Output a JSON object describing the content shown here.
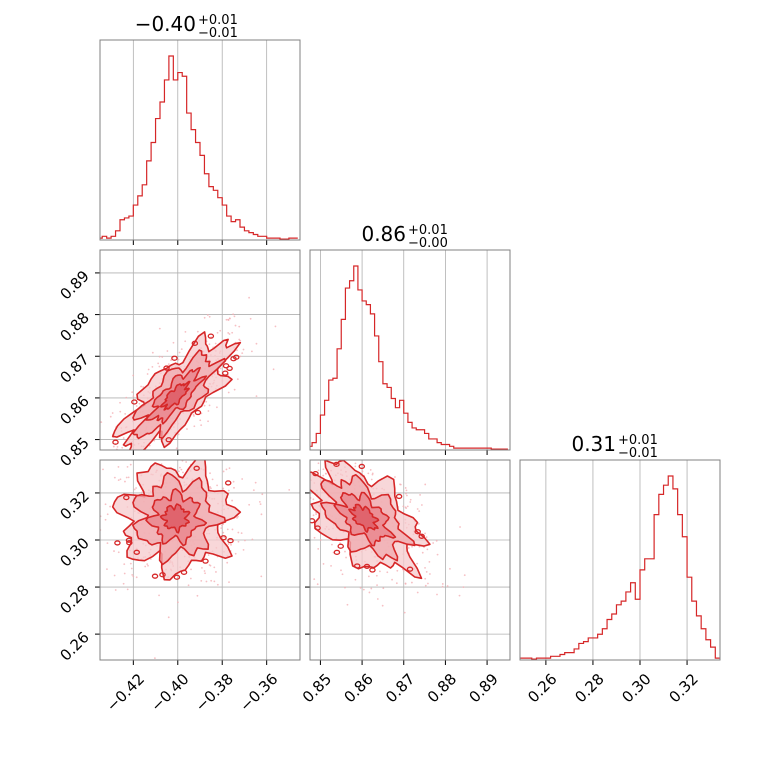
{
  "chart_data": [
    {
      "panel": "hist-param-1",
      "type": "histogram",
      "title": {
        "median": "−0.40",
        "plus": "+0.01",
        "minus": "−0.01"
      },
      "xlim": [
        -0.435,
        -0.345
      ],
      "gridlines_x": [
        -0.42,
        -0.4,
        -0.38,
        -0.36
      ],
      "bins": [
        [
          -0.435,
          0.01
        ],
        [
          -0.433,
          0.02
        ],
        [
          -0.431,
          0.01
        ],
        [
          -0.429,
          0.02
        ],
        [
          -0.427,
          0.05
        ],
        [
          -0.425,
          0.11
        ],
        [
          -0.423,
          0.12
        ],
        [
          -0.421,
          0.13
        ],
        [
          -0.419,
          0.19
        ],
        [
          -0.417,
          0.24
        ],
        [
          -0.415,
          0.3
        ],
        [
          -0.413,
          0.43
        ],
        [
          -0.411,
          0.53
        ],
        [
          -0.409,
          0.66
        ],
        [
          -0.407,
          0.75
        ],
        [
          -0.405,
          0.87
        ],
        [
          -0.403,
          1.0
        ],
        [
          -0.401,
          0.87
        ],
        [
          -0.399,
          0.91
        ],
        [
          -0.397,
          0.89
        ],
        [
          -0.395,
          0.69
        ],
        [
          -0.393,
          0.6
        ],
        [
          -0.391,
          0.53
        ],
        [
          -0.389,
          0.46
        ],
        [
          -0.387,
          0.36
        ],
        [
          -0.385,
          0.29
        ],
        [
          -0.383,
          0.27
        ],
        [
          -0.381,
          0.23
        ],
        [
          -0.379,
          0.19
        ],
        [
          -0.377,
          0.13
        ],
        [
          -0.375,
          0.1
        ],
        [
          -0.373,
          0.11
        ],
        [
          -0.371,
          0.07
        ],
        [
          -0.369,
          0.05
        ],
        [
          -0.367,
          0.04
        ],
        [
          -0.365,
          0.03
        ],
        [
          -0.363,
          0.02
        ],
        [
          -0.361,
          0.02
        ],
        [
          -0.359,
          0.01
        ],
        [
          -0.357,
          0.01
        ],
        [
          -0.355,
          0.01
        ],
        [
          -0.353,
          0.005
        ],
        [
          -0.351,
          0.005
        ],
        [
          -0.349,
          0.01
        ],
        [
          -0.347,
          0.01
        ]
      ]
    },
    {
      "panel": "hist-param-2",
      "type": "histogram",
      "title": {
        "median": "0.86",
        "plus": "+0.01",
        "minus": "−0.00"
      },
      "xlim": [
        0.8475,
        0.8955
      ],
      "gridlines_x": [
        0.85,
        0.86,
        0.87,
        0.88,
        0.89
      ],
      "bins": [
        [
          0.8475,
          0.02
        ],
        [
          0.8485,
          0.04
        ],
        [
          0.8495,
          0.09
        ],
        [
          0.8505,
          0.19
        ],
        [
          0.8515,
          0.27
        ],
        [
          0.8525,
          0.38
        ],
        [
          0.8535,
          0.39
        ],
        [
          0.8545,
          0.55
        ],
        [
          0.8555,
          0.71
        ],
        [
          0.8565,
          0.88
        ],
        [
          0.8575,
          0.92
        ],
        [
          0.8585,
          1.0
        ],
        [
          0.8595,
          0.87
        ],
        [
          0.8605,
          0.81
        ],
        [
          0.8615,
          0.79
        ],
        [
          0.8625,
          0.74
        ],
        [
          0.8635,
          0.62
        ],
        [
          0.8645,
          0.48
        ],
        [
          0.8655,
          0.36
        ],
        [
          0.8665,
          0.34
        ],
        [
          0.8675,
          0.28
        ],
        [
          0.8685,
          0.23
        ],
        [
          0.8695,
          0.27
        ],
        [
          0.8705,
          0.2
        ],
        [
          0.8715,
          0.15
        ],
        [
          0.8725,
          0.12
        ],
        [
          0.8735,
          0.11
        ],
        [
          0.8745,
          0.11
        ],
        [
          0.8755,
          0.09
        ],
        [
          0.8765,
          0.06
        ],
        [
          0.8775,
          0.06
        ],
        [
          0.8785,
          0.04
        ],
        [
          0.8795,
          0.03
        ],
        [
          0.8805,
          0.03
        ],
        [
          0.8815,
          0.02
        ],
        [
          0.8825,
          0.01
        ],
        [
          0.8835,
          0.01
        ],
        [
          0.8845,
          0.01
        ],
        [
          0.8855,
          0.01
        ],
        [
          0.8865,
          0.01
        ],
        [
          0.8875,
          0.01
        ],
        [
          0.8885,
          0.01
        ],
        [
          0.8895,
          0.01
        ],
        [
          0.8905,
          0.01
        ],
        [
          0.8915,
          0.005
        ],
        [
          0.8925,
          0.005
        ],
        [
          0.8935,
          0.005
        ],
        [
          0.8945,
          0.005
        ]
      ]
    },
    {
      "panel": "hist-param-3",
      "type": "histogram",
      "title": {
        "median": "0.31",
        "plus": "+0.01",
        "minus": "−0.01"
      },
      "xlim": [
        0.249,
        0.334
      ],
      "gridlines_x": [
        0.26,
        0.28,
        0.3,
        0.32
      ],
      "bins": [
        [
          0.249,
          0.01
        ],
        [
          0.251,
          0.01
        ],
        [
          0.253,
          0.01
        ],
        [
          0.255,
          0.005
        ],
        [
          0.257,
          0.01
        ],
        [
          0.259,
          0.01
        ],
        [
          0.261,
          0.01
        ],
        [
          0.263,
          0.02
        ],
        [
          0.265,
          0.02
        ],
        [
          0.267,
          0.03
        ],
        [
          0.269,
          0.04
        ],
        [
          0.271,
          0.04
        ],
        [
          0.273,
          0.06
        ],
        [
          0.275,
          0.09
        ],
        [
          0.277,
          0.1
        ],
        [
          0.279,
          0.12
        ],
        [
          0.281,
          0.12
        ],
        [
          0.283,
          0.14
        ],
        [
          0.285,
          0.17
        ],
        [
          0.287,
          0.22
        ],
        [
          0.289,
          0.25
        ],
        [
          0.291,
          0.3
        ],
        [
          0.293,
          0.32
        ],
        [
          0.295,
          0.37
        ],
        [
          0.297,
          0.42
        ],
        [
          0.299,
          0.33
        ],
        [
          0.301,
          0.49
        ],
        [
          0.303,
          0.55
        ],
        [
          0.305,
          0.55
        ],
        [
          0.307,
          0.79
        ],
        [
          0.309,
          0.9
        ],
        [
          0.311,
          0.95
        ],
        [
          0.313,
          1.0
        ],
        [
          0.315,
          0.93
        ],
        [
          0.317,
          0.79
        ],
        [
          0.319,
          0.67
        ],
        [
          0.321,
          0.45
        ],
        [
          0.323,
          0.32
        ],
        [
          0.325,
          0.24
        ],
        [
          0.327,
          0.17
        ],
        [
          0.329,
          0.11
        ],
        [
          0.331,
          0.07
        ],
        [
          0.333,
          0.01
        ]
      ]
    },
    {
      "panel": "contour-p1-p2",
      "type": "contour",
      "xlim": [
        -0.435,
        -0.345
      ],
      "ylim": [
        0.8475,
        0.8955
      ],
      "center": [
        -0.401,
        0.8605
      ],
      "spread": [
        0.012,
        0.0065
      ],
      "correlation": 0.75,
      "yticks": [
        "0.85",
        "0.86",
        "0.87",
        "0.88",
        "0.89"
      ],
      "ytick_values": [
        0.85,
        0.86,
        0.87,
        0.88,
        0.89
      ]
    },
    {
      "panel": "contour-p1-p3",
      "type": "contour",
      "xlim": [
        -0.435,
        -0.345
      ],
      "ylim": [
        0.249,
        0.334
      ],
      "center": [
        -0.401,
        0.3095
      ],
      "spread": [
        0.012,
        0.011
      ],
      "correlation": 0.0,
      "xticks": [
        "−0.42",
        "−0.40",
        "−0.38",
        "−0.36"
      ],
      "xtick_values": [
        -0.42,
        -0.4,
        -0.38,
        -0.36
      ],
      "yticks": [
        "0.26",
        "0.28",
        "0.30",
        "0.32"
      ],
      "ytick_values": [
        0.26,
        0.28,
        0.3,
        0.32
      ]
    },
    {
      "panel": "contour-p2-p3",
      "type": "contour",
      "xlim": [
        0.8475,
        0.8955
      ],
      "ylim": [
        0.249,
        0.334
      ],
      "center": [
        0.8605,
        0.3095
      ],
      "spread": [
        0.0065,
        0.011
      ],
      "correlation": -0.5,
      "xticks": [
        "0.85",
        "0.86",
        "0.87",
        "0.88",
        "0.89"
      ],
      "xtick_values": [
        0.85,
        0.86,
        0.87,
        0.88,
        0.89
      ]
    },
    {
      "panel": "hist-param-3-axis",
      "type": "axis",
      "xticks": [
        "0.26",
        "0.28",
        "0.30",
        "0.32"
      ],
      "xtick_values": [
        0.26,
        0.28,
        0.3,
        0.32
      ]
    }
  ],
  "colors": {
    "line": "#d62728",
    "fill_inner": "#e8828a",
    "fill_outer": "#f6c9cc",
    "scatter": "#f4b0b5",
    "grid": "#b0b0b0",
    "frame": "#808080"
  }
}
